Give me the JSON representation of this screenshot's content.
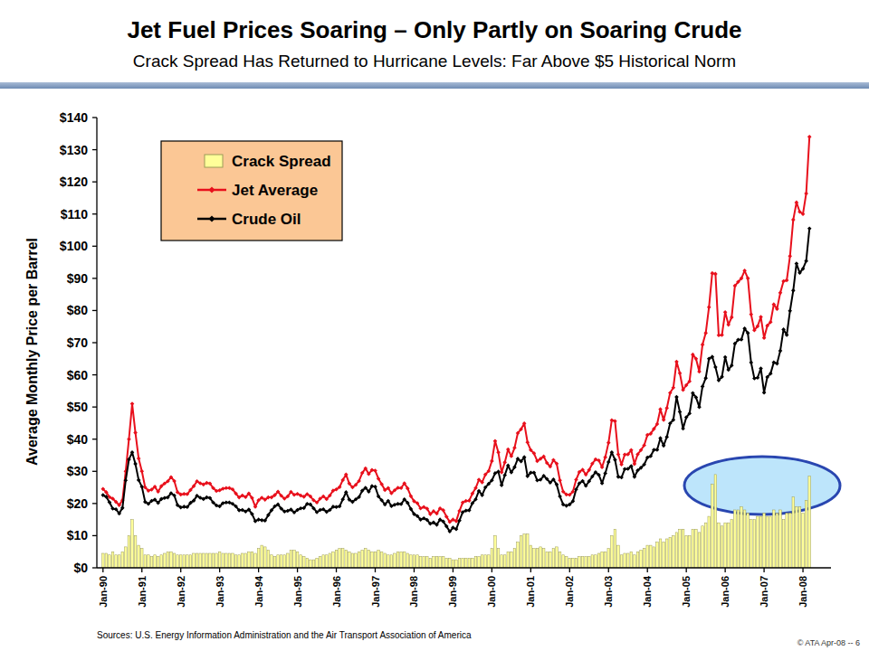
{
  "chart_data": {
    "type": "line",
    "title": "Jet Fuel Prices Soaring – Only Partly on Soaring Crude",
    "subtitle": "Crack Spread Has Returned to Hurricane Levels: Far Above $5 Historical Norm",
    "ylabel": "Average Monthly Price per Barrel",
    "source": "Sources: U.S. Energy Information Administration and the Air Transport Association of America",
    "footer": "© ATA Apr-08 -- 6",
    "legend": "top-left",
    "grid": false,
    "ylim": [
      0,
      140
    ],
    "yticks": [
      {
        "value": 0,
        "label": "$0"
      },
      {
        "value": 10,
        "label": "$10"
      },
      {
        "value": 20,
        "label": "$20"
      },
      {
        "value": 30,
        "label": "$30"
      },
      {
        "value": 40,
        "label": "$40"
      },
      {
        "value": 50,
        "label": "$50"
      },
      {
        "value": 60,
        "label": "$60"
      },
      {
        "value": 70,
        "label": "$70"
      },
      {
        "value": 80,
        "label": "$80"
      },
      {
        "value": 90,
        "label": "$90"
      },
      {
        "value": 100,
        "label": "$100"
      },
      {
        "value": 110,
        "label": "$110"
      },
      {
        "value": 120,
        "label": "$120"
      },
      {
        "value": 130,
        "label": "$130"
      },
      {
        "value": 140,
        "label": "$140"
      }
    ],
    "categories": [
      "Jan-90",
      null,
      null,
      null,
      null,
      null,
      null,
      null,
      null,
      null,
      null,
      null,
      "Jan-91",
      null,
      null,
      null,
      null,
      null,
      null,
      null,
      null,
      null,
      null,
      null,
      "Jan-92",
      null,
      null,
      null,
      null,
      null,
      null,
      null,
      null,
      null,
      null,
      null,
      "Jan-93",
      null,
      null,
      null,
      null,
      null,
      null,
      null,
      null,
      null,
      null,
      null,
      "Jan-94",
      null,
      null,
      null,
      null,
      null,
      null,
      null,
      null,
      null,
      null,
      null,
      "Jan-95",
      null,
      null,
      null,
      null,
      null,
      null,
      null,
      null,
      null,
      null,
      null,
      "Jan-96",
      null,
      null,
      null,
      null,
      null,
      null,
      null,
      null,
      null,
      null,
      null,
      "Jan-97",
      null,
      null,
      null,
      null,
      null,
      null,
      null,
      null,
      null,
      null,
      null,
      "Jan-98",
      null,
      null,
      null,
      null,
      null,
      null,
      null,
      null,
      null,
      null,
      null,
      "Jan-99",
      null,
      null,
      null,
      null,
      null,
      null,
      null,
      null,
      null,
      null,
      null,
      "Jan-00",
      null,
      null,
      null,
      null,
      null,
      null,
      null,
      null,
      null,
      null,
      null,
      "Jan-01",
      null,
      null,
      null,
      null,
      null,
      null,
      null,
      null,
      null,
      null,
      null,
      "Jan-02",
      null,
      null,
      null,
      null,
      null,
      null,
      null,
      null,
      null,
      null,
      null,
      "Jan-03",
      null,
      null,
      null,
      null,
      null,
      null,
      null,
      null,
      null,
      null,
      null,
      "Jan-04",
      null,
      null,
      null,
      null,
      null,
      null,
      null,
      null,
      null,
      null,
      null,
      "Jan-05",
      null,
      null,
      null,
      null,
      null,
      null,
      null,
      null,
      null,
      null,
      null,
      "Jan-06",
      null,
      null,
      null,
      null,
      null,
      null,
      null,
      null,
      null,
      null,
      null,
      "Jan-07",
      null,
      null,
      null,
      null,
      null,
      null,
      null,
      null,
      null,
      null,
      null,
      "Jan-08",
      null,
      null
    ],
    "series": [
      {
        "name": "Crack Spread",
        "type": "bar",
        "color": "#FFFF99",
        "values": [
          4.5,
          4.5,
          4,
          5,
          4,
          4,
          5,
          6.5,
          10,
          15,
          10,
          7,
          6,
          4,
          4,
          3.5,
          4,
          3.5,
          4,
          4.5,
          5,
          5,
          4.5,
          4,
          4,
          4,
          4,
          4,
          4.5,
          4.5,
          4.5,
          4.5,
          4.5,
          4.5,
          4.5,
          4.5,
          5,
          4.5,
          4.5,
          4.5,
          4.5,
          4,
          4,
          4.5,
          4.5,
          5,
          5,
          4.5,
          6,
          7,
          6.5,
          5.5,
          4,
          3.5,
          4,
          4,
          4,
          4.5,
          5.5,
          5.5,
          5,
          4,
          3.5,
          3,
          2.5,
          2.5,
          3,
          3.5,
          4,
          4,
          4.5,
          5,
          5.5,
          6,
          6,
          5.5,
          5,
          4.5,
          4.5,
          5,
          5.5,
          6,
          5.5,
          5,
          5,
          5.5,
          5,
          4.5,
          4,
          4,
          4.5,
          5,
          5,
          5,
          4.5,
          4,
          4,
          4,
          3.5,
          3.5,
          3.5,
          3,
          3.5,
          3.5,
          3.5,
          3.5,
          3,
          3,
          2.5,
          2.5,
          3,
          3,
          3,
          3,
          3,
          3.5,
          3.5,
          4,
          4,
          4,
          6,
          10,
          6,
          4,
          4,
          5,
          5,
          6,
          8,
          10,
          10.5,
          10.5,
          7,
          6,
          6,
          6.5,
          6,
          5,
          5,
          6,
          6.5,
          5,
          4,
          3.5,
          3,
          3,
          3,
          3.5,
          3.5,
          3.5,
          3.5,
          4,
          4,
          4.5,
          5,
          5,
          6,
          10,
          12,
          7,
          4,
          4.5,
          4.5,
          5,
          4,
          5,
          5.5,
          6,
          7,
          7,
          6.5,
          8,
          9,
          8,
          9,
          9.5,
          10,
          11,
          12,
          12,
          10,
          10,
          12,
          12,
          11,
          13,
          14,
          16,
          26,
          29,
          14,
          13,
          14,
          14,
          15,
          18,
          18,
          19,
          18,
          17,
          15,
          15,
          16,
          16,
          17,
          16,
          16,
          18,
          17,
          18,
          15,
          17,
          17,
          22,
          19,
          19,
          17,
          21,
          28.5
        ]
      },
      {
        "name": "Jet Average",
        "type": "line",
        "color": "#E8101C",
        "marker": "diamond",
        "values": [
          24.5,
          23.5,
          22.0,
          21.5,
          20.5,
          19.5,
          21.0,
          30.0,
          40.0,
          51.0,
          42.0,
          34.0,
          30.0,
          25.0,
          24.0,
          24.3,
          25.2,
          23.7,
          25.4,
          26.2,
          26.9,
          28.2,
          27.0,
          23.5,
          22.8,
          23.0,
          22.9,
          24.2,
          25.4,
          26.9,
          26.3,
          25.9,
          26.4,
          26.2,
          24.8,
          23.9,
          24.1,
          24.6,
          24.8,
          24.8,
          24.4,
          23.1,
          21.9,
          22.5,
          22.0,
          23.1,
          21.7,
          19.0,
          21.0,
          21.8,
          21.2,
          21.9,
          21.9,
          22.6,
          23.7,
          22.4,
          21.5,
          22.2,
          23.6,
          22.7,
          23.0,
          22.5,
          22.1,
          22.9,
          22.2,
          21.0,
          20.3,
          21.5,
          22.2,
          21.4,
          22.5,
          24.0,
          24.4,
          25.1,
          27.3,
          29.0,
          26.2,
          25.0,
          25.8,
          27.0,
          29.5,
          30.9,
          29.2,
          30.4,
          30.2,
          27.7,
          26.0,
          24.2,
          24.8,
          23.2,
          24.1,
          24.9,
          24.8,
          26.3,
          24.7,
          22.3,
          20.7,
          20.1,
          18.5,
          18.9,
          18.4,
          16.7,
          17.6,
          16.9,
          18.5,
          17.9,
          15.9,
          14.3,
          15.0,
          14.5,
          17.7,
          20.3,
          20.8,
          20.9,
          23.1,
          24.8,
          27.4,
          26.6,
          29.0,
          30.1,
          33.2,
          39.4,
          35.9,
          29.7,
          32.8,
          36.8,
          34.7,
          37.3,
          41.9,
          43.1,
          44.9,
          39.0,
          36.6,
          35.6,
          33.2,
          33.9,
          34.6,
          32.6,
          31.5,
          33.5,
          32.4,
          27.2,
          23.7,
          22.8,
          22.7,
          23.7,
          27.4,
          29.8,
          30.5,
          29.0,
          30.4,
          32.4,
          33.7,
          33.4,
          31.3,
          34.4,
          38.9,
          45.9,
          45.6,
          35.3,
          32.1,
          35.2,
          35.3,
          36.6,
          32.3,
          35.3,
          36.6,
          38.1,
          41.3,
          41.7,
          43.2,
          44.7,
          49.3,
          46.0,
          49.7,
          54.4,
          56.0,
          64.1,
          60.5,
          55.3,
          56.8,
          58.0,
          66.3,
          65.0,
          61.0,
          69.4,
          73.0,
          81.0,
          91.6,
          91.4,
          72.3,
          72.4,
          79.5,
          75.6,
          77.9,
          87.7,
          88.9,
          90.0,
          92.4,
          90.0,
          78.8,
          73.9,
          75.1,
          78.0,
          71.5,
          75.3,
          76.4,
          81.9,
          80.5,
          85.5,
          89.1,
          89.4,
          96.9,
          108.2,
          113.6,
          110.7,
          110.0,
          116.4,
          134.0
        ]
      },
      {
        "name": "Crude Oil",
        "type": "line",
        "color": "#000000",
        "marker": "diamond",
        "values": [
          22.6,
          22.1,
          20.4,
          18.4,
          18.2,
          16.9,
          18.6,
          27.2,
          33.7,
          35.9,
          32.3,
          27.3,
          25.2,
          20.5,
          19.9,
          20.8,
          21.2,
          20.2,
          21.4,
          21.7,
          21.9,
          23.2,
          22.5,
          19.5,
          18.8,
          19.0,
          18.9,
          20.2,
          20.9,
          22.4,
          21.8,
          21.4,
          21.9,
          21.7,
          20.3,
          19.4,
          19.1,
          20.1,
          20.3,
          20.3,
          19.9,
          19.1,
          17.9,
          18.0,
          17.5,
          18.1,
          16.7,
          14.5,
          15.0,
          14.8,
          14.7,
          16.4,
          17.9,
          19.1,
          19.7,
          18.4,
          17.5,
          17.7,
          18.1,
          17.2,
          18.0,
          18.5,
          18.6,
          19.9,
          19.7,
          18.5,
          17.3,
          18.0,
          18.2,
          17.4,
          18.0,
          19.0,
          18.9,
          19.1,
          21.3,
          23.5,
          21.2,
          20.5,
          21.3,
          22.0,
          24.0,
          24.9,
          23.7,
          25.4,
          25.2,
          22.2,
          21.0,
          19.7,
          20.8,
          19.2,
          19.6,
          19.9,
          19.8,
          21.3,
          20.2,
          18.3,
          16.7,
          16.1,
          15.0,
          15.4,
          14.9,
          13.7,
          14.1,
          13.4,
          15.0,
          14.4,
          12.9,
          11.3,
          12.5,
          12.0,
          14.7,
          17.3,
          17.8,
          17.9,
          20.1,
          21.3,
          23.9,
          22.6,
          25.0,
          26.1,
          27.2,
          29.4,
          29.9,
          25.7,
          28.8,
          31.8,
          29.7,
          31.3,
          33.9,
          33.1,
          34.4,
          28.5,
          29.6,
          29.6,
          27.2,
          27.4,
          28.6,
          27.6,
          26.5,
          27.5,
          25.9,
          22.2,
          19.7,
          19.3,
          19.7,
          20.7,
          24.4,
          26.3,
          27.0,
          25.5,
          26.9,
          28.4,
          29.7,
          28.9,
          26.3,
          29.4,
          32.9,
          35.9,
          33.6,
          28.3,
          28.1,
          30.7,
          30.8,
          31.6,
          28.3,
          30.3,
          31.1,
          32.1,
          34.3,
          34.7,
          36.7,
          36.7,
          40.3,
          38.0,
          40.7,
          44.9,
          46.0,
          53.1,
          48.5,
          43.3,
          46.8,
          48.0,
          54.3,
          53.0,
          50.0,
          56.4,
          59.0,
          65.0,
          65.6,
          62.4,
          58.3,
          59.4,
          65.5,
          61.6,
          62.9,
          69.7,
          70.9,
          71.0,
          74.4,
          73.0,
          63.8,
          58.9,
          59.1,
          62.0,
          54.5,
          59.3,
          60.4,
          63.9,
          63.5,
          67.5,
          74.1,
          72.4,
          79.9,
          86.2,
          94.6,
          91.7,
          93.0,
          95.4,
          105.5
        ]
      }
    ]
  }
}
